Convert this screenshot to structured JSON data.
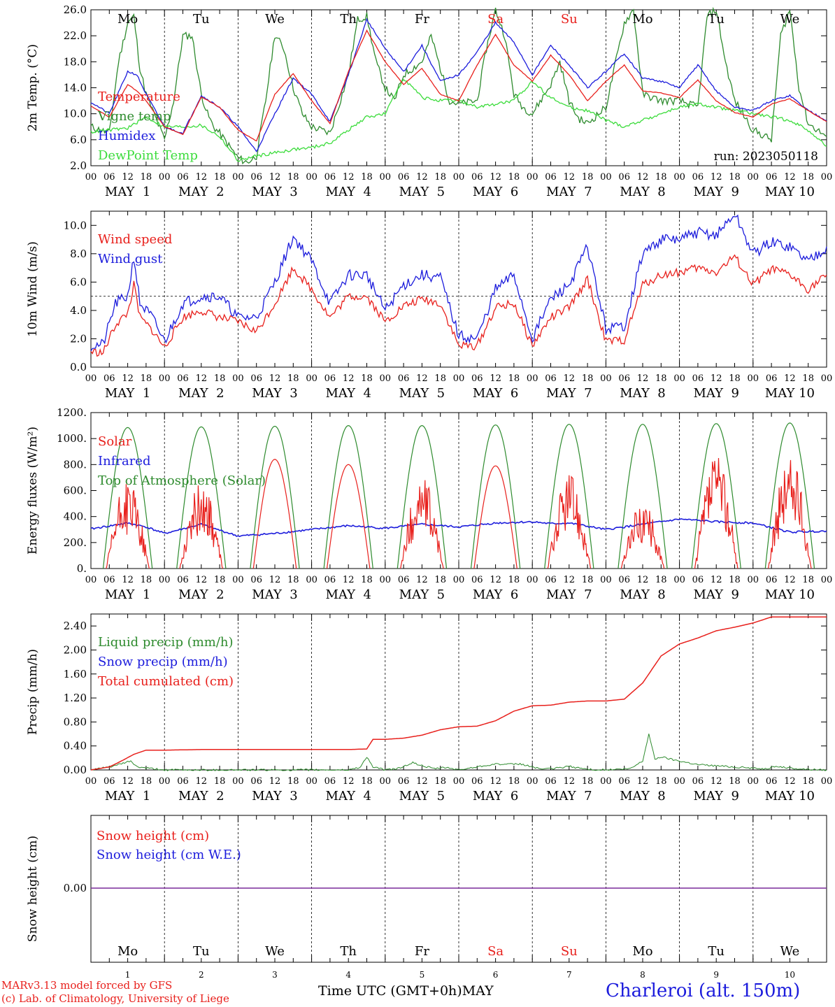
{
  "run_label": "run: 2023050118",
  "model_credit": "MARv3.13 model forced by GFS",
  "lab_credit": "(c) Lab. of Climatology, University of Liege",
  "x_axis_title": "Time UTC (GMT+0h)",
  "x_month": "MAY",
  "station": "Charleroi (alt. 150m)",
  "hour_ticks": [
    "00",
    "06",
    "12",
    "18"
  ],
  "day_labels": [
    "MAY  1",
    "MAY  2",
    "MAY  3",
    "MAY  4",
    "MAY  5",
    "MAY  6",
    "MAY  7",
    "MAY  8",
    "MAY  9",
    "MAY 10"
  ],
  "weekdays": [
    "Mo",
    "Tu",
    "We",
    "Th",
    "Fr",
    "Sa",
    "Su",
    "Mo",
    "Tu",
    "We"
  ],
  "weekday_colors": [
    "#000000",
    "#000000",
    "#000000",
    "#000000",
    "#000000",
    "#e8201c",
    "#e8201c",
    "#000000",
    "#000000",
    "#000000"
  ],
  "day_numbers": [
    "1",
    "2",
    "3",
    "4",
    "5",
    "6",
    "7",
    "8",
    "9",
    "10"
  ],
  "colors": {
    "red": "#e8201c",
    "green": "#2e8b2e",
    "blue": "#1c1cdc",
    "lightgreen": "#3cdc3c",
    "purple": "#7a2a9a",
    "black": "#000000"
  },
  "chart_data": [
    {
      "type": "line",
      "ylabel": "2m Temp. (°C)",
      "ylim": [
        2,
        26
      ],
      "yticks": [
        "2.0",
        "6.0",
        "10.0",
        "14.0",
        "18.0",
        "22.0",
        "26.0"
      ],
      "ytick_values": [
        2,
        6,
        10,
        14,
        18,
        22,
        26
      ],
      "x_range_hours": [
        0,
        240
      ],
      "legend": [
        "Temperature",
        "Vigne temp",
        "Humidex",
        "DewPoint Temp"
      ],
      "series": [
        {
          "name": "Temperature",
          "color": "red",
          "x": [
            0,
            6,
            12,
            15,
            18,
            24,
            30,
            36,
            42,
            48,
            54,
            60,
            66,
            72,
            78,
            84,
            90,
            96,
            102,
            108,
            114,
            120,
            126,
            132,
            138,
            144,
            150,
            156,
            162,
            168,
            174,
            180,
            186,
            192,
            198,
            204,
            210,
            216,
            222,
            228,
            234,
            240
          ],
          "y": [
            11.2,
            9.5,
            14.5,
            13.5,
            12,
            8,
            6.8,
            12.6,
            11,
            7.5,
            5.8,
            13,
            16.2,
            12,
            8.5,
            16.5,
            22.8,
            18,
            14.5,
            17,
            13,
            12,
            17.5,
            22.2,
            17.5,
            15,
            19,
            16,
            12,
            15,
            17.5,
            13.5,
            13.2,
            12.5,
            15.2,
            12,
            10.2,
            9.5,
            11.5,
            12.3,
            10.5,
            8.8
          ]
        },
        {
          "name": "Vigne temp",
          "color": "green",
          "x": [
            0,
            6,
            9,
            12,
            14,
            16,
            18,
            24,
            27,
            30,
            33,
            36,
            38,
            40,
            42,
            48,
            51,
            54,
            57,
            60,
            63,
            66,
            69,
            72,
            78,
            84,
            87,
            90,
            93,
            96,
            99,
            102,
            108,
            111,
            114,
            117,
            120,
            126,
            129,
            132,
            135,
            138,
            141,
            144,
            150,
            153,
            156,
            159,
            162,
            168,
            174,
            177,
            180,
            186,
            192,
            198,
            201,
            204,
            207,
            210,
            216,
            222,
            225,
            228,
            231,
            234,
            240
          ],
          "y": [
            8,
            7,
            18,
            24,
            25,
            17,
            13,
            6,
            12,
            22,
            22,
            13,
            10,
            8,
            7,
            3.2,
            2.5,
            3.5,
            12,
            22.2,
            20,
            14,
            10,
            8,
            7,
            16,
            24.5,
            25,
            18,
            14,
            12,
            16,
            18,
            22,
            17,
            12,
            11.5,
            12,
            20,
            26,
            22,
            13,
            11,
            10,
            14.5,
            18,
            12,
            9.3,
            8.5,
            11,
            24,
            26,
            13,
            12,
            12,
            11,
            25,
            26,
            18,
            12,
            7.5,
            6,
            22,
            26,
            14,
            8.5,
            6.5
          ]
        },
        {
          "name": "Humidex",
          "color": "blue",
          "x": [
            0,
            6,
            12,
            15,
            18,
            24,
            30,
            36,
            42,
            48,
            54,
            60,
            66,
            72,
            78,
            84,
            90,
            96,
            102,
            108,
            114,
            120,
            126,
            132,
            138,
            144,
            150,
            156,
            162,
            168,
            174,
            180,
            186,
            192,
            198,
            204,
            210,
            216,
            222,
            228,
            234,
            240
          ],
          "y": [
            11.8,
            10,
            16.5,
            16,
            13,
            8,
            7,
            12.8,
            11,
            8,
            4.2,
            10,
            15.5,
            13,
            8.8,
            16,
            24.5,
            20,
            16.5,
            20.5,
            15,
            16,
            19.5,
            24,
            21,
            16,
            20.5,
            17.5,
            14,
            16.5,
            19.3,
            15.5,
            15,
            14,
            17.5,
            13.5,
            11,
            10.5,
            12,
            12.8,
            10.5,
            9
          ]
        },
        {
          "name": "DewPoint Temp",
          "color": "lightgreen",
          "x": [
            0,
            12,
            18,
            24,
            30,
            36,
            42,
            48,
            54,
            60,
            66,
            72,
            78,
            84,
            90,
            96,
            102,
            108,
            114,
            120,
            126,
            132,
            138,
            144,
            150,
            156,
            162,
            168,
            174,
            180,
            186,
            192,
            198,
            204,
            210,
            216,
            222,
            228,
            234,
            240
          ],
          "y": [
            7.2,
            7.8,
            9.5,
            8,
            8,
            8.2,
            6.5,
            2.8,
            3.5,
            4,
            4.5,
            4.8,
            5.5,
            7.5,
            9.5,
            10,
            15.5,
            12.5,
            12,
            12,
            11,
            11.5,
            12,
            15,
            12.5,
            11,
            10.5,
            9,
            8,
            9,
            10,
            11,
            11.5,
            11,
            10.5,
            10,
            9.5,
            9,
            7.5,
            5
          ]
        }
      ]
    },
    {
      "type": "line",
      "ylabel": "10m Wind (m/s)",
      "ylim": [
        0,
        11
      ],
      "yticks": [
        "0.0",
        "2.0",
        "4.0",
        "6.0",
        "8.0",
        "10.0"
      ],
      "ytick_values": [
        0,
        2,
        4,
        6,
        8,
        10
      ],
      "ref_line": 5,
      "x_range_hours": [
        0,
        240
      ],
      "legend": [
        "Wind speed",
        "Wind gust"
      ],
      "series": [
        {
          "name": "Wind speed",
          "color": "red",
          "x": [
            0,
            4,
            8,
            12,
            14,
            16,
            20,
            24,
            30,
            36,
            42,
            48,
            54,
            60,
            66,
            72,
            78,
            84,
            90,
            96,
            102,
            108,
            114,
            120,
            126,
            132,
            138,
            144,
            150,
            156,
            162,
            168,
            174,
            180,
            186,
            192,
            198,
            204,
            210,
            216,
            222,
            228,
            234,
            240
          ],
          "y": [
            1.1,
            1.0,
            3.0,
            3.8,
            5.8,
            3.5,
            2.6,
            1.4,
            3.5,
            4.0,
            3.5,
            3.2,
            2.5,
            4.5,
            7.0,
            5.5,
            3.5,
            5.0,
            5.0,
            3.2,
            4.3,
            4.8,
            4.5,
            1.5,
            1.5,
            4.2,
            4.5,
            1.5,
            3.5,
            4.2,
            6.2,
            1.8,
            1.9,
            5.8,
            6.5,
            6.7,
            7.0,
            6.7,
            7.8,
            5.8,
            6.9,
            6.5,
            5.5,
            6.5
          ]
        },
        {
          "name": "Wind gust",
          "color": "blue",
          "x": [
            0,
            4,
            8,
            12,
            14,
            16,
            20,
            24,
            30,
            36,
            42,
            48,
            54,
            60,
            66,
            72,
            78,
            84,
            90,
            96,
            102,
            108,
            114,
            120,
            126,
            132,
            138,
            144,
            150,
            156,
            162,
            168,
            174,
            180,
            186,
            192,
            198,
            204,
            210,
            216,
            222,
            228,
            234,
            240
          ],
          "y": [
            1.5,
            1.6,
            4.5,
            5.0,
            7.8,
            4.5,
            3.5,
            1.8,
            4.5,
            5.0,
            5.0,
            3.5,
            3.5,
            6.0,
            9.2,
            7.5,
            4.5,
            6.5,
            6.5,
            4.0,
            5.8,
            6.5,
            6.3,
            2.2,
            2.0,
            5.5,
            6.5,
            2.0,
            4.8,
            5.8,
            8.5,
            2.7,
            2.9,
            8.0,
            9.0,
            9.0,
            9.5,
            9.3,
            10.8,
            8.0,
            8.8,
            8.5,
            7.5,
            8.5
          ]
        }
      ]
    },
    {
      "type": "line",
      "ylabel": "Energy fluxes (W/m²)",
      "ylim": [
        0,
        1200
      ],
      "yticks": [
        "0.",
        "200.",
        "400.",
        "600.",
        "800.",
        "1000.",
        "1200."
      ],
      "ytick_values": [
        0,
        200,
        400,
        600,
        800,
        1000,
        1200
      ],
      "x_range_hours": [
        0,
        240
      ],
      "legend": [
        "Solar",
        "Infrared",
        "Top of Atmosphere (Solar)"
      ],
      "toa_peaks": [
        1085,
        1090,
        1095,
        1100,
        1100,
        1105,
        1110,
        1110,
        1115,
        1120
      ],
      "solar_peaks": [
        650,
        640,
        840,
        800,
        680,
        790,
        720,
        490,
        850,
        840
      ],
      "series": [
        {
          "name": "Infrared",
          "color": "blue",
          "x": [
            0,
            12,
            18,
            24,
            36,
            48,
            60,
            72,
            84,
            96,
            108,
            120,
            132,
            144,
            150,
            156,
            168,
            180,
            192,
            204,
            216,
            228,
            240
          ],
          "y": [
            305,
            350,
            320,
            270,
            340,
            250,
            270,
            300,
            330,
            310,
            340,
            320,
            350,
            360,
            345,
            350,
            300,
            340,
            380,
            360,
            350,
            280,
            290
          ]
        }
      ]
    },
    {
      "type": "line",
      "ylabel": "Precip (mm/h)",
      "ylim": [
        0,
        2.6
      ],
      "yticks": [
        "0.00",
        "0.40",
        "0.80",
        "1.20",
        "1.60",
        "2.00",
        "2.40"
      ],
      "ytick_values": [
        0,
        0.4,
        0.8,
        1.2,
        1.6,
        2.0,
        2.4
      ],
      "x_range_hours": [
        0,
        240
      ],
      "legend": [
        "Liquid precip (mm/h)",
        "Snow precip (mm/h)",
        "Total cumulated (cm)"
      ],
      "series": [
        {
          "name": "Total cumulated (cm)",
          "color": "red",
          "x": [
            0,
            6,
            10,
            14,
            18,
            24,
            36,
            48,
            60,
            72,
            84,
            90,
            92,
            96,
            102,
            108,
            114,
            120,
            126,
            132,
            138,
            144,
            150,
            156,
            162,
            168,
            174,
            180,
            186,
            192,
            198,
            204,
            210,
            216,
            222,
            228,
            234,
            240
          ],
          "y": [
            0,
            0.05,
            0.15,
            0.26,
            0.33,
            0.33,
            0.34,
            0.34,
            0.34,
            0.34,
            0.34,
            0.35,
            0.51,
            0.51,
            0.53,
            0.58,
            0.67,
            0.72,
            0.73,
            0.82,
            0.98,
            1.07,
            1.08,
            1.13,
            1.15,
            1.15,
            1.18,
            1.45,
            1.9,
            2.1,
            2.2,
            2.32,
            2.38,
            2.45,
            2.55,
            2.55,
            2.55,
            2.55
          ]
        },
        {
          "name": "Liquid precip (mm/h)",
          "color": "green",
          "x": [
            0,
            6,
            10,
            13,
            15,
            18,
            24,
            84,
            88,
            90,
            92,
            96,
            100,
            105,
            108,
            112,
            116,
            120,
            128,
            132,
            136,
            140,
            144,
            148,
            152,
            156,
            162,
            168,
            176,
            180,
            182,
            184,
            186,
            190,
            194,
            198,
            204,
            210,
            216,
            220,
            224,
            228,
            234,
            240
          ],
          "y": [
            0,
            0.05,
            0.1,
            0.15,
            0.05,
            0.03,
            0,
            0,
            0.05,
            0.22,
            0.05,
            0,
            0.02,
            0.12,
            0.07,
            0.02,
            0.04,
            0,
            0.07,
            0.1,
            0.09,
            0.1,
            0.05,
            0.01,
            0.03,
            0.06,
            0.01,
            0,
            0.02,
            0.15,
            0.6,
            0.18,
            0.22,
            0.17,
            0.13,
            0.09,
            0.07,
            0.05,
            0.03,
            0.02,
            0.06,
            0.03,
            0.01,
            0
          ]
        }
      ]
    },
    {
      "type": "line",
      "ylabel": "Snow height (cm)",
      "yticks": [
        "0.00"
      ],
      "ytick_values": [
        0
      ],
      "x_range_hours": [
        0,
        240
      ],
      "legend": [
        "Snow height (cm)",
        "Snow height (cm W.E.)"
      ],
      "series": [
        {
          "name": "Snow height (cm)",
          "color": "purple",
          "x": [
            0,
            240
          ],
          "y": [
            0,
            0
          ]
        }
      ]
    }
  ]
}
